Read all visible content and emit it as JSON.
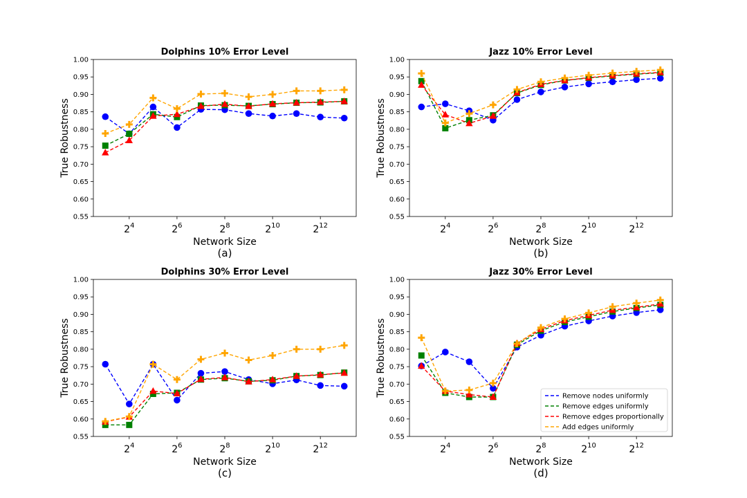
{
  "series_names": [
    "Remove nodes uniformly",
    "Remove edges uniformly",
    "Remove edges proportionally",
    "Add edges uniformly"
  ],
  "series_colors": [
    "#0000ff",
    "#008000",
    "#ff0000",
    "#ffa500"
  ],
  "series_markers": [
    "circle",
    "square",
    "triangle",
    "plus"
  ],
  "chart_data": [
    {
      "type": "line",
      "title": "Dolphins 10% Error Level",
      "caption": "(a)",
      "xlabel": "Network Size",
      "ylabel": "True Robustness",
      "x_scale": "log2",
      "x": [
        8,
        16,
        32,
        64,
        128,
        256,
        512,
        1024,
        2048,
        4096,
        8192
      ],
      "xticks": [
        {
          "base": "2",
          "exp": "4"
        },
        {
          "base": "2",
          "exp": "6"
        },
        {
          "base": "2",
          "exp": "8"
        },
        {
          "base": "2",
          "exp": "10"
        },
        {
          "base": "2",
          "exp": "12"
        }
      ],
      "ylim": [
        0.55,
        1.0
      ],
      "yticks": [
        "0.55",
        "0.60",
        "0.65",
        "0.70",
        "0.75",
        "0.80",
        "0.85",
        "0.90",
        "0.95",
        "1.00"
      ],
      "series": [
        {
          "values": [
            0.836,
            0.787,
            0.864,
            0.805,
            0.857,
            0.856,
            0.845,
            0.838,
            0.845,
            0.835,
            0.832
          ]
        },
        {
          "values": [
            0.753,
            0.787,
            0.843,
            0.835,
            0.868,
            0.869,
            0.867,
            0.872,
            0.876,
            0.877,
            0.88
          ]
        },
        {
          "values": [
            0.733,
            0.768,
            0.838,
            0.843,
            0.866,
            0.872,
            0.866,
            0.873,
            0.876,
            0.878,
            0.88
          ]
        },
        {
          "values": [
            0.788,
            0.814,
            0.89,
            0.859,
            0.901,
            0.903,
            0.893,
            0.9,
            0.91,
            0.91,
            0.913
          ]
        }
      ]
    },
    {
      "type": "line",
      "title": "Jazz 10% Error Level",
      "caption": "(b)",
      "xlabel": "Network Size",
      "ylabel": "True Robustness",
      "x_scale": "log2",
      "x": [
        8,
        16,
        32,
        64,
        128,
        256,
        512,
        1024,
        2048,
        4096,
        8192
      ],
      "xticks": [
        {
          "base": "2",
          "exp": "4"
        },
        {
          "base": "2",
          "exp": "6"
        },
        {
          "base": "2",
          "exp": "8"
        },
        {
          "base": "2",
          "exp": "10"
        },
        {
          "base": "2",
          "exp": "12"
        }
      ],
      "ylim": [
        0.55,
        1.0
      ],
      "yticks": [
        "0.55",
        "0.60",
        "0.65",
        "0.70",
        "0.75",
        "0.80",
        "0.85",
        "0.90",
        "0.95",
        "1.00"
      ],
      "series": [
        {
          "values": [
            0.864,
            0.873,
            0.853,
            0.826,
            0.885,
            0.907,
            0.921,
            0.93,
            0.936,
            0.942,
            0.946
          ]
        },
        {
          "values": [
            0.938,
            0.803,
            0.826,
            0.84,
            0.904,
            0.927,
            0.94,
            0.947,
            0.953,
            0.958,
            0.962
          ]
        },
        {
          "values": [
            0.927,
            0.842,
            0.817,
            0.838,
            0.905,
            0.929,
            0.94,
            0.948,
            0.954,
            0.959,
            0.963
          ]
        },
        {
          "values": [
            0.96,
            0.818,
            0.845,
            0.87,
            0.914,
            0.936,
            0.947,
            0.955,
            0.961,
            0.966,
            0.97
          ]
        }
      ]
    },
    {
      "type": "line",
      "title": "Dolphins 30% Error Level",
      "caption": "(c)",
      "xlabel": "Network Size",
      "ylabel": "True Robustness",
      "x_scale": "log2",
      "x": [
        8,
        16,
        32,
        64,
        128,
        256,
        512,
        1024,
        2048,
        4096,
        8192
      ],
      "xticks": [
        {
          "base": "2",
          "exp": "4"
        },
        {
          "base": "2",
          "exp": "6"
        },
        {
          "base": "2",
          "exp": "8"
        },
        {
          "base": "2",
          "exp": "10"
        },
        {
          "base": "2",
          "exp": "12"
        }
      ],
      "ylim": [
        0.55,
        1.0
      ],
      "yticks": [
        "0.55",
        "0.60",
        "0.65",
        "0.70",
        "0.75",
        "0.80",
        "0.85",
        "0.90",
        "0.95",
        "1.00"
      ],
      "series": [
        {
          "values": [
            0.757,
            0.643,
            0.757,
            0.654,
            0.731,
            0.736,
            0.713,
            0.701,
            0.712,
            0.696,
            0.694
          ]
        },
        {
          "values": [
            0.583,
            0.583,
            0.672,
            0.675,
            0.713,
            0.717,
            0.708,
            0.711,
            0.723,
            0.726,
            0.733
          ]
        },
        {
          "values": [
            0.592,
            0.606,
            0.68,
            0.673,
            0.714,
            0.719,
            0.707,
            0.713,
            0.723,
            0.727,
            0.732
          ]
        },
        {
          "values": [
            0.593,
            0.607,
            0.757,
            0.713,
            0.771,
            0.789,
            0.769,
            0.782,
            0.8,
            0.8,
            0.811
          ]
        }
      ]
    },
    {
      "type": "line",
      "title": "Jazz 30% Error Level",
      "caption": "(d)",
      "xlabel": "Network Size",
      "ylabel": "True Robustness",
      "x_scale": "log2",
      "x": [
        8,
        16,
        32,
        64,
        128,
        256,
        512,
        1024,
        2048,
        4096,
        8192
      ],
      "xticks": [
        {
          "base": "2",
          "exp": "4"
        },
        {
          "base": "2",
          "exp": "6"
        },
        {
          "base": "2",
          "exp": "8"
        },
        {
          "base": "2",
          "exp": "10"
        },
        {
          "base": "2",
          "exp": "12"
        }
      ],
      "ylim": [
        0.55,
        1.0
      ],
      "yticks": [
        "0.55",
        "0.60",
        "0.65",
        "0.70",
        "0.75",
        "0.80",
        "0.85",
        "0.90",
        "0.95",
        "1.00"
      ],
      "legend_position": "lower-right",
      "series": [
        {
          "values": [
            0.752,
            0.792,
            0.764,
            0.688,
            0.806,
            0.84,
            0.866,
            0.881,
            0.895,
            0.905,
            0.913
          ]
        },
        {
          "values": [
            0.782,
            0.675,
            0.663,
            0.663,
            0.813,
            0.853,
            0.878,
            0.893,
            0.908,
            0.918,
            0.927
          ]
        },
        {
          "values": [
            0.752,
            0.68,
            0.67,
            0.663,
            0.817,
            0.857,
            0.882,
            0.897,
            0.912,
            0.92,
            0.93
          ]
        },
        {
          "values": [
            0.833,
            0.68,
            0.683,
            0.703,
            0.816,
            0.862,
            0.887,
            0.904,
            0.922,
            0.932,
            0.941
          ]
        }
      ]
    }
  ]
}
